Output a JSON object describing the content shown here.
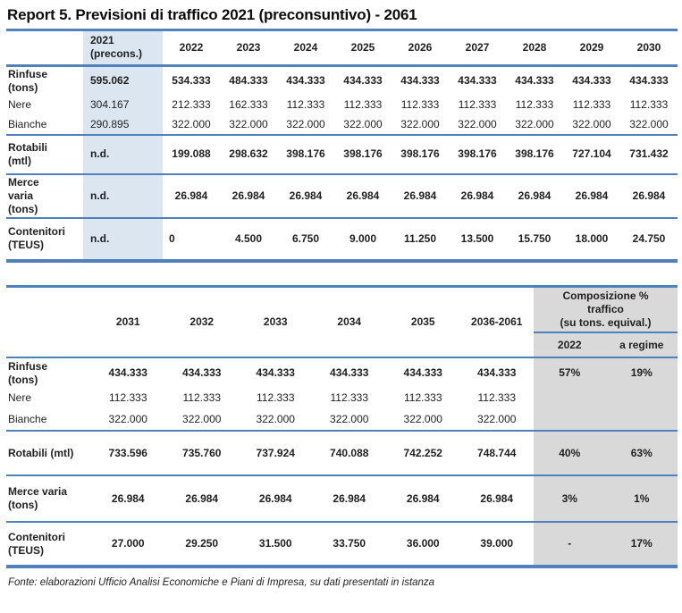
{
  "title": "Report 5. Previsioni di traffico 2021 (preconsuntivo) - 2061",
  "footer": "Fonte: elaborazioni Ufficio Analisi Economiche e Piani di Impresa, su dati presentati in istanza",
  "colors": {
    "accent_blue": "#4f81bd",
    "highlight_blue": "#dce6f1",
    "header_gray": "#d9d9d9"
  },
  "table1": {
    "year_columns": [
      "2021\n(precons.)",
      "2022",
      "2023",
      "2024",
      "2025",
      "2026",
      "2027",
      "2028",
      "2029",
      "2030"
    ],
    "rows": [
      {
        "label": "Rinfuse\n(tons)",
        "bold": true,
        "values": [
          "595.062",
          "534.333",
          "484.333",
          "434.333",
          "434.333",
          "434.333",
          "434.333",
          "434.333",
          "434.333",
          "434.333"
        ]
      },
      {
        "label": "Nere",
        "bold": false,
        "values": [
          "304.167",
          "212.333",
          "162.333",
          "112.333",
          "112.333",
          "112.333",
          "112.333",
          "112.333",
          "112.333",
          "112.333"
        ]
      },
      {
        "label": "Bianche",
        "bold": false,
        "values": [
          "290.895",
          "322.000",
          "322.000",
          "322.000",
          "322.000",
          "322.000",
          "322.000",
          "322.000",
          "322.000",
          "322.000"
        ]
      },
      {
        "label": "Rotabili\n(mtl)",
        "bold": true,
        "values": [
          "n.d.",
          "199.088",
          "298.632",
          "398.176",
          "398.176",
          "398.176",
          "398.176",
          "398.176",
          "727.104",
          "731.432"
        ]
      },
      {
        "label": "Merce\nvaria\n(tons)",
        "bold": true,
        "values": [
          "n.d.",
          "26.984",
          "26.984",
          "26.984",
          "26.984",
          "26.984",
          "26.984",
          "26.984",
          "26.984",
          "26.984"
        ]
      },
      {
        "label": "Contenitori\n(TEUS)",
        "bold": true,
        "values": [
          "n.d.",
          "0",
          "4.500",
          "6.750",
          "9.000",
          "11.250",
          "13.500",
          "15.750",
          "18.000",
          "24.750"
        ]
      }
    ]
  },
  "table2": {
    "year_columns": [
      "2031",
      "2032",
      "2033",
      "2034",
      "2035",
      "2036-2061"
    ],
    "composition_header": "Composizione %\ntraffico\n(su tons. equival.)",
    "composition_subcolumns": [
      "2022",
      "a regime"
    ],
    "rows": [
      {
        "label": "Rinfuse\n(tons)",
        "bold": true,
        "values": [
          "434.333",
          "434.333",
          "434.333",
          "434.333",
          "434.333",
          "434.333"
        ],
        "composition": [
          "57%",
          "19%"
        ]
      },
      {
        "label": "Nere",
        "bold": false,
        "values": [
          "112.333",
          "112.333",
          "112.333",
          "112.333",
          "112.333",
          "112.333"
        ],
        "composition": [
          "",
          ""
        ]
      },
      {
        "label": "Bianche",
        "bold": false,
        "values": [
          "322.000",
          "322.000",
          "322.000",
          "322.000",
          "322.000",
          "322.000"
        ],
        "composition": [
          "",
          ""
        ]
      },
      {
        "label": "Rotabili (mtl)",
        "bold": true,
        "values": [
          "733.596",
          "735.760",
          "737.924",
          "740.088",
          "742.252",
          "748.744"
        ],
        "composition": [
          "40%",
          "63%"
        ]
      },
      {
        "label": "Merce varia\n(tons)",
        "bold": true,
        "values": [
          "26.984",
          "26.984",
          "26.984",
          "26.984",
          "26.984",
          "26.984"
        ],
        "composition": [
          "3%",
          "1%"
        ]
      },
      {
        "label": "Contenitori\n(TEUS)",
        "bold": true,
        "values": [
          "27.000",
          "29.250",
          "31.500",
          "33.750",
          "36.000",
          "39.000"
        ],
        "composition": [
          "-",
          "17%"
        ]
      }
    ]
  }
}
